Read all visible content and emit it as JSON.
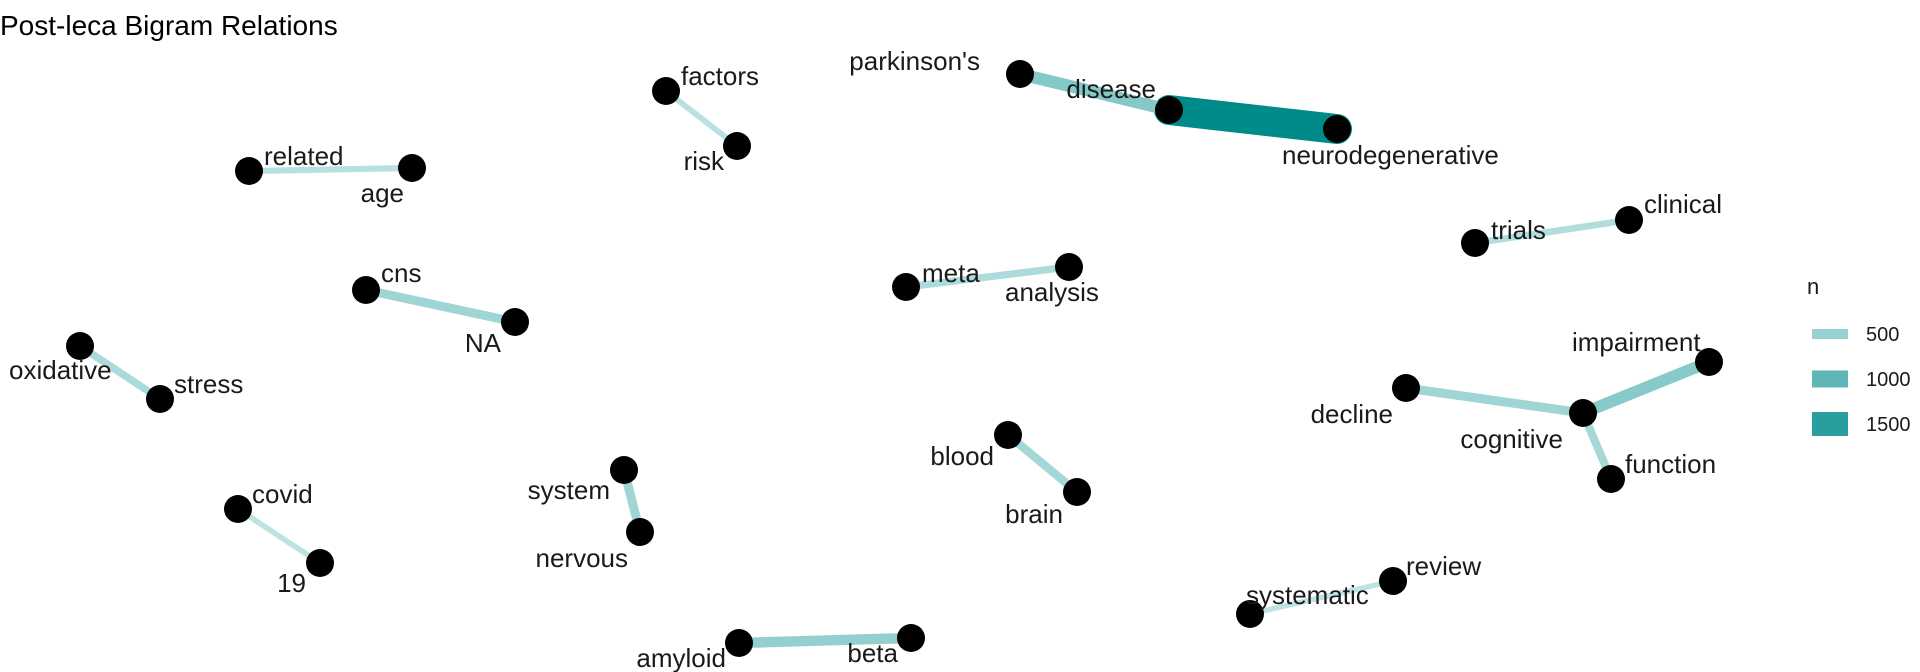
{
  "title": "Post-leca Bigram Relations",
  "colors": {
    "low": "#d6eeee",
    "high": "#008b8b",
    "node": "#000000"
  },
  "legend": {
    "title": "n",
    "items": [
      {
        "label": "500",
        "n": 500
      },
      {
        "label": "1000",
        "n": 1000
      },
      {
        "label": "1500",
        "n": 1500
      }
    ]
  },
  "chart_data": {
    "type": "network",
    "nodes": [
      "parkinson's",
      "disease",
      "neurodegenerative",
      "factors",
      "risk",
      "related",
      "age",
      "trials",
      "clinical",
      "cns",
      "NA",
      "meta",
      "analysis",
      "oxidative",
      "stress",
      "impairment",
      "decline",
      "cognitive",
      "function",
      "blood",
      "brain",
      "covid",
      "19",
      "system",
      "nervous",
      "systematic",
      "review",
      "amyloid",
      "beta"
    ],
    "edges": [
      {
        "from": "disease",
        "to": "neurodegenerative",
        "n": 1900
      },
      {
        "from": "parkinson's",
        "to": "disease",
        "n": 650
      },
      {
        "from": "risk",
        "to": "factors",
        "n": 200
      },
      {
        "from": "related",
        "to": "age",
        "n": 220
      },
      {
        "from": "clinical",
        "to": "trials",
        "n": 260
      },
      {
        "from": "cns",
        "to": "NA",
        "n": 420
      },
      {
        "from": "meta",
        "to": "analysis",
        "n": 300
      },
      {
        "from": "oxidative",
        "to": "stress",
        "n": 320
      },
      {
        "from": "cognitive",
        "to": "impairment",
        "n": 620
      },
      {
        "from": "cognitive",
        "to": "decline",
        "n": 420
      },
      {
        "from": "cognitive",
        "to": "function",
        "n": 360
      },
      {
        "from": "blood",
        "to": "brain",
        "n": 380
      },
      {
        "from": "covid",
        "to": "19",
        "n": 180
      },
      {
        "from": "nervous",
        "to": "system",
        "n": 420
      },
      {
        "from": "systematic",
        "to": "review",
        "n": 170
      },
      {
        "from": "amyloid",
        "to": "beta",
        "n": 520
      }
    ]
  }
}
